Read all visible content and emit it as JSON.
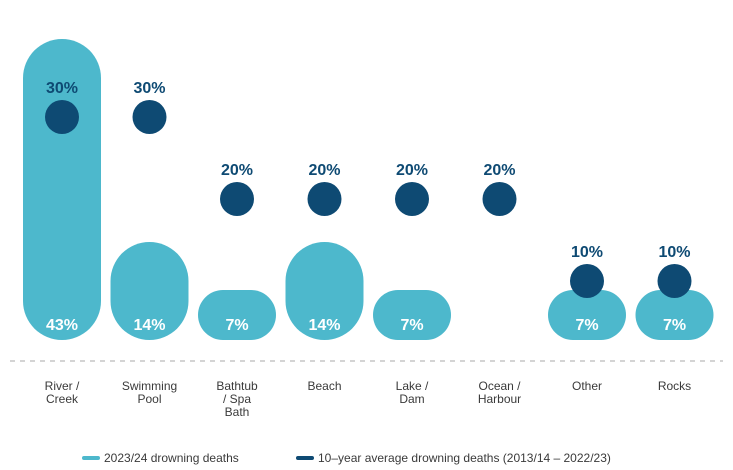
{
  "chart_data": {
    "type": "bar",
    "categories": [
      [
        "River /",
        "Creek"
      ],
      [
        "Swimming",
        "Pool"
      ],
      [
        "Bathtub",
        "/ Spa",
        "Bath"
      ],
      [
        "Beach"
      ],
      [
        "Lake /",
        "Dam"
      ],
      [
        "Ocean /",
        "Harbour"
      ],
      [
        "Other"
      ],
      [
        "Rocks"
      ]
    ],
    "series": [
      {
        "name": "2023/24 drowning deaths",
        "kind": "bar",
        "color": "#4db8cc",
        "values": [
          43,
          14,
          7,
          14,
          7,
          null,
          7,
          7
        ],
        "labels": [
          "43%",
          "14%",
          "7%",
          "14%",
          "7%",
          "",
          "7%",
          "7%"
        ]
      },
      {
        "name": "10–year average drowning deaths (2013/14 – 2022/23)",
        "kind": "dot",
        "color": "#0e4a73",
        "values": [
          30,
          30,
          20,
          20,
          20,
          20,
          10,
          10
        ],
        "labels": [
          "30%",
          "30%",
          "20%",
          "20%",
          "20%",
          "20%",
          "10%",
          "10%"
        ]
      }
    ],
    "title": "",
    "xlabel": "",
    "ylabel": "",
    "grid": false,
    "legend_position": "bottom",
    "colors": {
      "bar": "#4db8cc",
      "dot": "#0e4a73",
      "text": "#3a3a3a",
      "baseline": "#bbbbbb"
    }
  }
}
